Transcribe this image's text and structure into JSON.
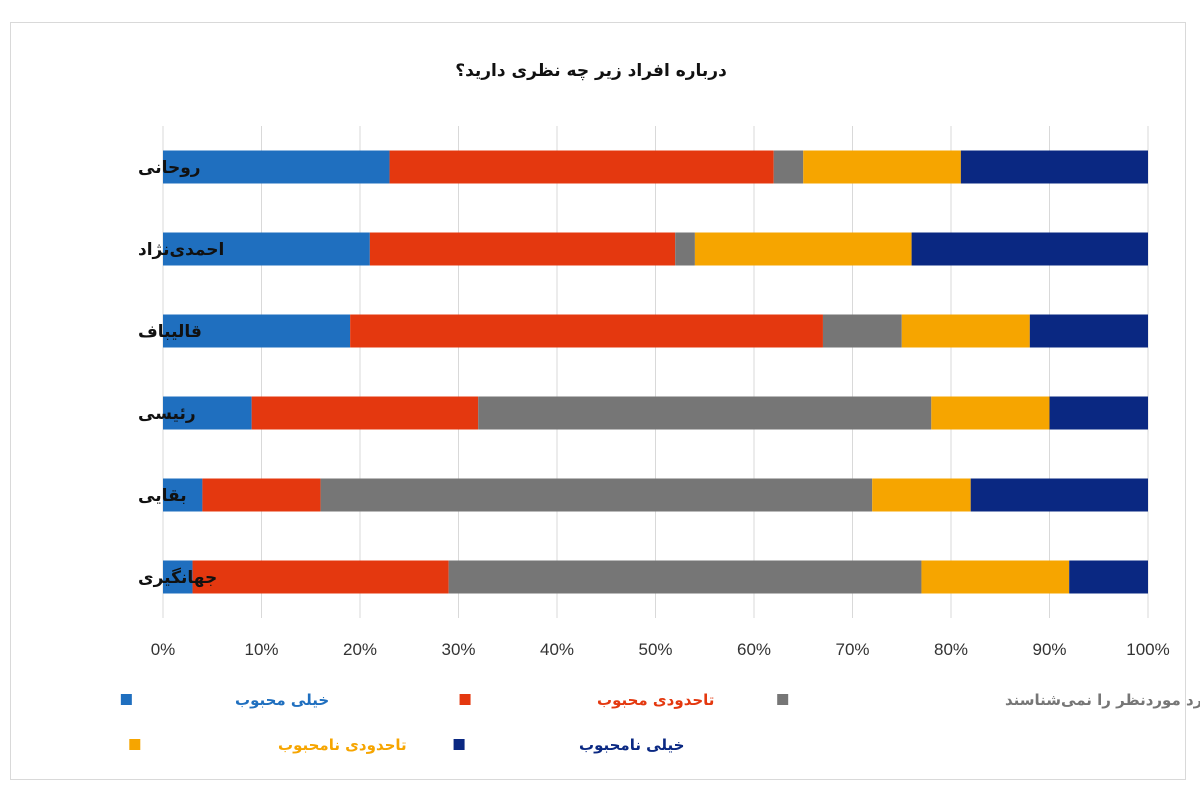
{
  "chart_data": {
    "type": "bar",
    "orientation": "horizontal",
    "stacked": "percent",
    "title": "درباره افراد زیر چه نظری دارید؟",
    "categories": [
      "روحانی",
      "احمدی‌نژاد",
      "قالیباف",
      "رئیسی",
      "بقایی",
      "جهانگیری"
    ],
    "series": [
      {
        "name": "خیلی محبوب",
        "color": "#1f6fbf",
        "values": [
          23,
          21,
          19,
          9,
          4,
          3
        ]
      },
      {
        "name": "تاحدودی محبوب",
        "color": "#e4380f",
        "values": [
          39,
          31,
          48,
          23,
          12,
          26
        ]
      },
      {
        "name": "فرد موردنظر را نمی‌شناسند",
        "color": "#767676",
        "values": [
          3,
          2,
          8,
          46,
          56,
          48
        ]
      },
      {
        "name": "تاحدودی نامحبوب",
        "color": "#f6a500",
        "values": [
          16,
          22,
          13,
          12,
          10,
          15
        ]
      },
      {
        "name": "خیلی نامحبوب",
        "color": "#0a2882",
        "values": [
          19,
          24,
          12,
          10,
          18,
          8
        ]
      }
    ],
    "xlim": [
      0,
      100
    ],
    "x_ticks": [
      "0%",
      "10%",
      "20%",
      "30%",
      "40%",
      "50%",
      "60%",
      "70%",
      "80%",
      "90%",
      "100%"
    ],
    "grid": "vertical",
    "legend_position": "bottom"
  }
}
